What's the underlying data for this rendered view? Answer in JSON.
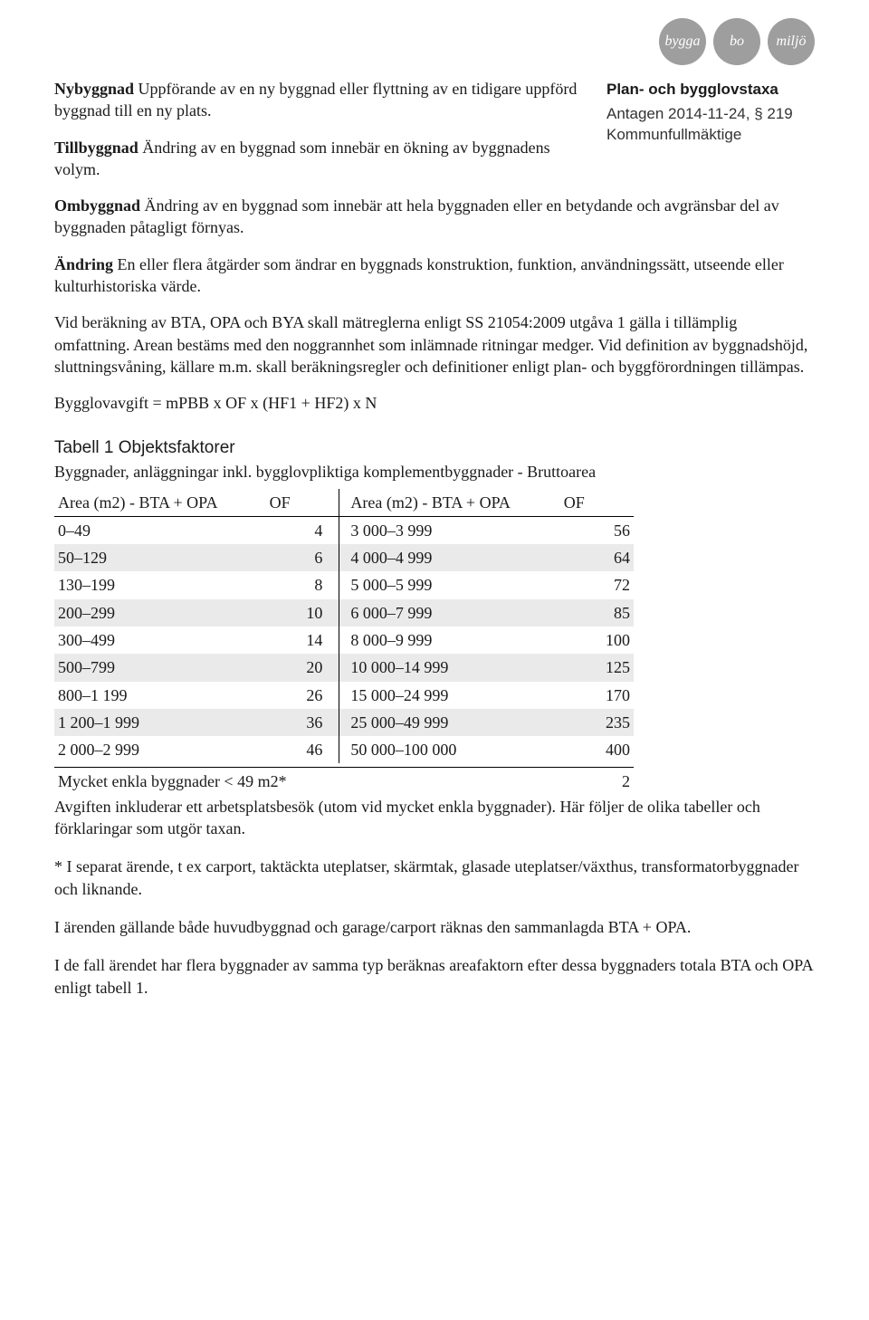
{
  "tags": {
    "t1": "bygga",
    "t2": "bo",
    "t3": "miljö",
    "color": "#9e9e9e",
    "text_color": "#ffffff"
  },
  "sidebar": {
    "title": "Plan- och bygglovstaxa",
    "line1": "Antagen 2014-11-24, § 219",
    "line2": "Kommunfullmäktige"
  },
  "definitions": {
    "d1": {
      "term": "Nybyggnad",
      "text": " Uppförande av en ny byggnad eller flyttning av en tidigare uppförd byggnad till en ny plats."
    },
    "d2": {
      "term": "Tillbyggnad",
      "text": " Ändring av en byggnad som innebär en ökning av byggnadens volym."
    },
    "d3": {
      "term": "Ombyggnad",
      "text": " Ändring av en byggnad som innebär att hela byggnaden eller en betydande och avgränsbar del av byggnaden påtagligt förnyas."
    },
    "d4": {
      "term": "Ändring",
      "text": " En eller flera åtgärder som ändrar en byggnads konstruktion, funktion, användningssätt, utseende eller kulturhistoriska värde."
    }
  },
  "paragraphs": {
    "p1": "Vid beräkning av BTA, OPA och BYA skall mätreglerna enligt SS 21054:2009 utgåva 1 gälla i tillämplig omfattning. Arean bestäms med den noggrannhet som inlämnade ritningar medger. Vid definition av byggnadshöjd, sluttningsvåning, källare m.m. skall beräkningsregler och definitioner enligt plan- och byggförordningen tillämpas.",
    "formula": "Bygglovavgift = mPBB x OF x (HF1 + HF2) x N"
  },
  "table": {
    "title": "Tabell 1 Objektsfaktorer",
    "subtitle": "Byggnader, anläggningar inkl. bygglovpliktiga komplementbyggnader - Bruttoarea",
    "headers": {
      "h1": "Area (m2) - BTA + OPA",
      "h2": "OF",
      "h3": "Area (m2) - BTA + OPA",
      "h4": "OF"
    },
    "rows": [
      {
        "a": "0–49",
        "of": "4",
        "b": "3 000–3 999",
        "of2": "56",
        "shaded": false
      },
      {
        "a": "50–129",
        "of": "6",
        "b": "4 000–4 999",
        "of2": "64",
        "shaded": true
      },
      {
        "a": "130–199",
        "of": "8",
        "b": "5 000–5 999",
        "of2": "72",
        "shaded": false
      },
      {
        "a": "200–299",
        "of": "10",
        "b": "6 000–7 999",
        "of2": "85",
        "shaded": true
      },
      {
        "a": "300–499",
        "of": "14",
        "b": "8 000–9 999",
        "of2": "100",
        "shaded": false
      },
      {
        "a": "500–799",
        "of": "20",
        "b": "10 000–14 999",
        "of2": "125",
        "shaded": true
      },
      {
        "a": "800–1 199",
        "of": "26",
        "b": "15 000–24 999",
        "of2": "170",
        "shaded": false
      },
      {
        "a": "1 200–1 999",
        "of": "36",
        "b": "25 000–49 999",
        "of2": "235",
        "shaded": true
      },
      {
        "a": "2 000–2 999",
        "of": "46",
        "b": "50 000–100 000",
        "of2": "400",
        "shaded": false
      }
    ],
    "footer": {
      "label": "Mycket enkla byggnader < 49 m2*",
      "value": "2"
    },
    "col_widths": {
      "c1": 230,
      "c2": 80,
      "c3": 230,
      "c4": 80
    }
  },
  "after": {
    "p1": "Avgiften inkluderar ett arbetsplatsbesök (utom vid mycket enkla byggnader). Här följer de olika tabeller och förklaringar som utgör taxan.",
    "p2": "* I separat ärende, t ex carport, taktäckta uteplatser, skärmtak, glasade uteplatser/växthus, transformatorbyggnader och liknande.",
    "p3": "I ärenden gällande både huvudbyggnad och garage/carport räknas den sammanlagda BTA + OPA.",
    "p4": "I de fall ärendet har flera byggnader av samma typ beräknas areafaktorn efter dessa byggnaders totala BTA och OPA enligt tabell 1."
  }
}
